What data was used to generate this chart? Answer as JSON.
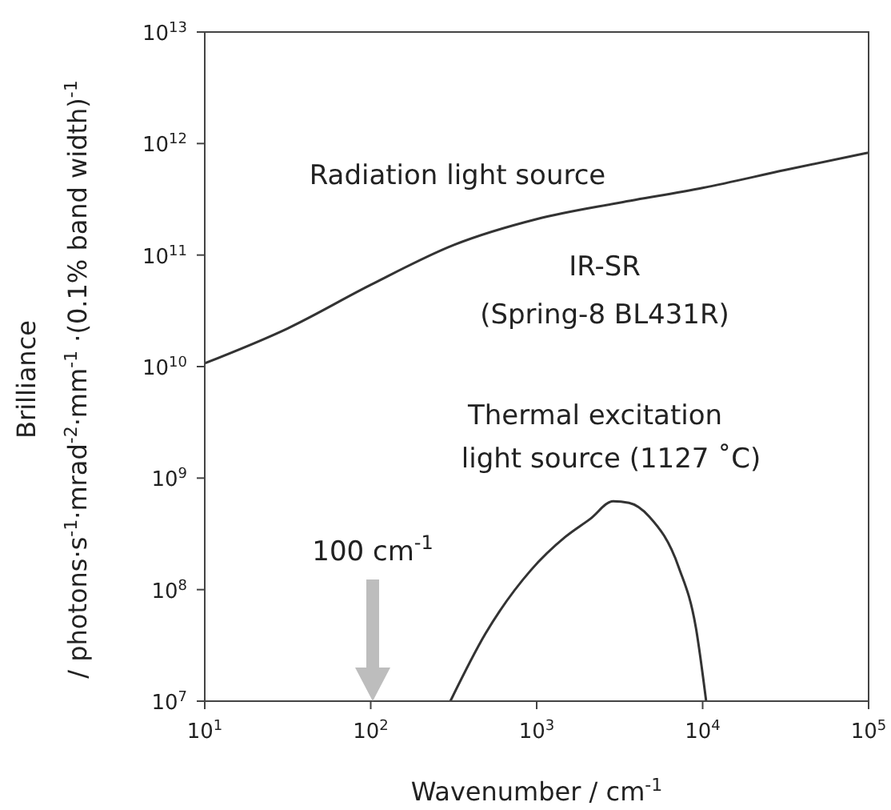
{
  "chart_data": {
    "type": "line",
    "xlabel": "Wavenumber / cm$^{-1}$",
    "ylabel": "Brilliance\n/ photons·s$^{-1}$·mrad$^{-2}$·mm$^{-1}$ ·(0.1% band width)$^{-1}$",
    "series": [
      {
        "color": "#333333",
        "x": [
          10,
          31.6,
          100,
          316,
          1000,
          3162,
          10000,
          31623,
          100000
        ],
        "values": [
          10700000000.0,
          22000000000.0,
          54000000000.0,
          123000000000.0,
          210000000000.0,
          295000000000.0,
          400000000000.0,
          580000000000.0,
          830000000000.0
        ]
      },
      {
        "color": "#333333",
        "x": [
          302,
          490,
          925,
          1480,
          2100,
          2890,
          3600,
          4780,
          7160,
          9120,
          10500
        ],
        "values": [
          10000000.0,
          40000000.0,
          150000000.0,
          295000000.0,
          430000000.0,
          620000000.0,
          600000000.0,
          450000000.0,
          160000000.0,
          45000000.0,
          10000000.0
        ]
      }
    ],
    "annotations": [
      "Radiation light source",
      "IR-SR",
      "(Spring-8 BL431R)",
      "Thermal excitation",
      "light source (1127 ˚C)",
      "100 cm$^{-1}$"
    ],
    "log": "xy",
    "xlim": [
      10,
      100000
    ],
    "xticks": [
      {
        "value": 10,
        "label": "10$^{1}$"
      },
      {
        "value": 100,
        "label": "10$^{2}$"
      },
      {
        "value": 1000,
        "label": "10$^{3}$"
      },
      {
        "value": 10000,
        "label": "10$^{4}$"
      },
      {
        "value": 100000,
        "label": "10$^{5}$"
      }
    ],
    "ylim": [
      10000000.0,
      10000000000000.0
    ],
    "yticks": [
      {
        "value": 10000000.0,
        "label": "10$^{7}$"
      },
      {
        "value": 100000000.0,
        "label": "10$^{8}$"
      },
      {
        "value": 1000000000.0,
        "label": "10$^{9}$"
      },
      {
        "value": 10000000000.0,
        "label": "10$^{10}$"
      },
      {
        "value": 100000000000.0,
        "label": "10$^{11}$"
      },
      {
        "value": 1000000000000.0,
        "label": "10$^{12}$"
      },
      {
        "value": 10000000000000.0,
        "label": "10$^{13}$"
      }
    ],
    "line_style": "solid"
  }
}
